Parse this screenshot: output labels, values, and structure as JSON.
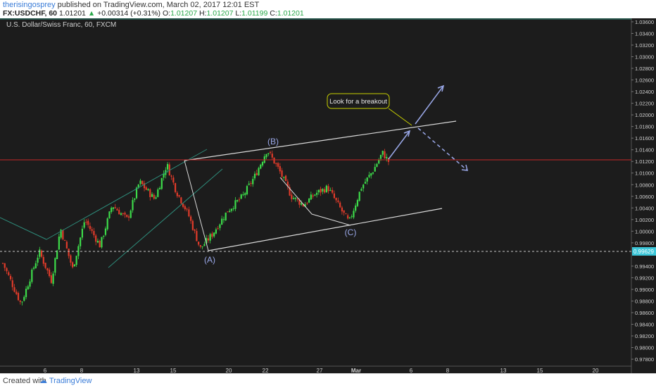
{
  "header": {
    "author": "therisingosprey",
    "published_text": "published on TradingView.com, March 02, 2017 12:01 EST",
    "symbol_line": "FX:USDCHF, 60",
    "last_price": "1.01201",
    "change": "+0.00314 (+0.31%)",
    "ohlc_o_label": "O:",
    "ohlc_o": "1.01207",
    "ohlc_h_label": "H:",
    "ohlc_h": "1.01207",
    "ohlc_l_label": "L:",
    "ohlc_l": "1.01199",
    "ohlc_c_label": "C:",
    "ohlc_c": "1.01201"
  },
  "footer": {
    "created_with": "Created with",
    "brand": "TradingView"
  },
  "chart_data": {
    "type": "candlestick",
    "title": "U.S. Dollar/Swiss Franc, 60, FXCM",
    "x_tick_labels": [
      "6",
      "8",
      "13",
      "15",
      "20",
      "22",
      "27",
      "Mar",
      "6",
      "8",
      "13",
      "15",
      "20"
    ],
    "y_tick_labels": [
      "1.03600",
      "1.03400",
      "1.03200",
      "1.03000",
      "1.02800",
      "1.02600",
      "1.02400",
      "1.02200",
      "1.02000",
      "1.01800",
      "1.01600",
      "1.01400",
      "1.01200",
      "1.01000",
      "1.00800",
      "1.00600",
      "1.00400",
      "1.00200",
      "1.00000",
      "0.99800",
      "0.99629",
      "0.99400",
      "0.99200",
      "0.99000",
      "0.98800",
      "0.98600",
      "0.98400",
      "0.98200",
      "0.98000",
      "0.97800"
    ],
    "ylim": [
      0.9768,
      1.0366
    ],
    "highlighted_price": "0.99629",
    "last_price_line": 1.01201,
    "annotations": {
      "wave_a": "(A)",
      "wave_b": "(B)",
      "wave_c": "(C)",
      "callout": "Look for a breakout"
    },
    "price_path": [
      {
        "t": 0,
        "p": 0.9945
      },
      {
        "t": 0.03,
        "p": 0.9875
      },
      {
        "t": 0.06,
        "p": 0.9965
      },
      {
        "t": 0.08,
        "p": 0.9915
      },
      {
        "t": 0.095,
        "p": 1.0005
      },
      {
        "t": 0.115,
        "p": 0.9935
      },
      {
        "t": 0.135,
        "p": 1.002
      },
      {
        "t": 0.16,
        "p": 0.9975
      },
      {
        "t": 0.18,
        "p": 1.0045
      },
      {
        "t": 0.205,
        "p": 1.002
      },
      {
        "t": 0.225,
        "p": 1.0085
      },
      {
        "t": 0.25,
        "p": 1.0055
      },
      {
        "t": 0.27,
        "p": 1.0115
      },
      {
        "t": 0.285,
        "p": 1.007
      },
      {
        "t": 0.305,
        "p": 1.003
      },
      {
        "t": 0.325,
        "p": 0.997
      },
      {
        "t": 0.345,
        "p": 0.9995
      },
      {
        "t": 0.37,
        "p": 1.0035
      },
      {
        "t": 0.395,
        "p": 1.006
      },
      {
        "t": 0.415,
        "p": 1.0095
      },
      {
        "t": 0.435,
        "p": 1.014
      },
      {
        "t": 0.455,
        "p": 1.0105
      },
      {
        "t": 0.475,
        "p": 1.006
      },
      {
        "t": 0.495,
        "p": 1.0045
      },
      {
        "t": 0.515,
        "p": 1.0065
      },
      {
        "t": 0.535,
        "p": 1.0075
      },
      {
        "t": 0.555,
        "p": 1.004
      },
      {
        "t": 0.57,
        "p": 1.0015
      },
      {
        "t": 0.59,
        "p": 1.0075
      },
      {
        "t": 0.61,
        "p": 1.0105
      },
      {
        "t": 0.625,
        "p": 1.0135
      },
      {
        "t": 0.635,
        "p": 1.012
      }
    ]
  }
}
